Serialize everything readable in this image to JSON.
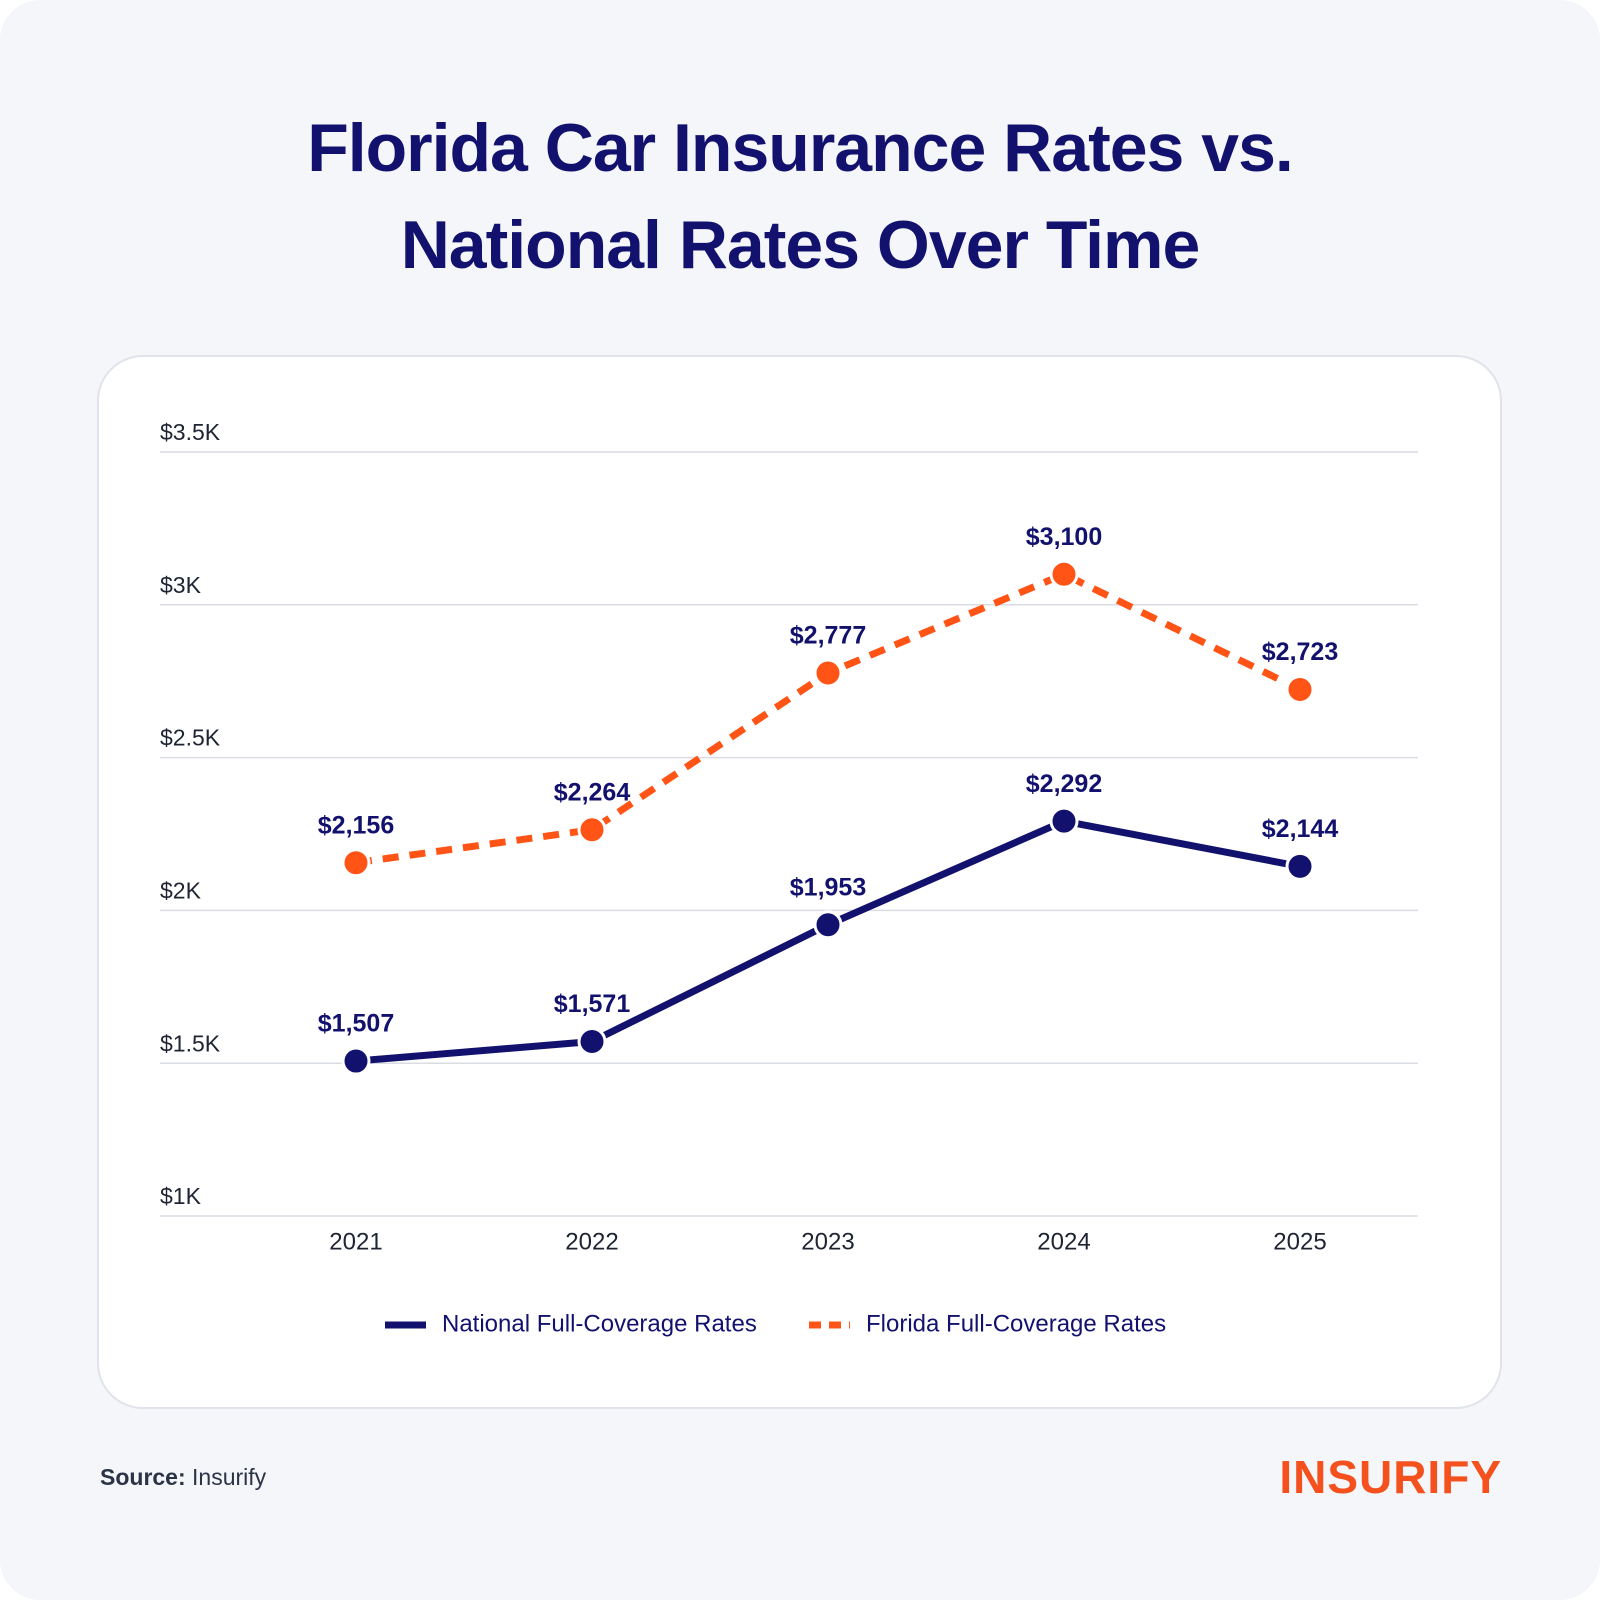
{
  "chart_data": {
    "type": "line",
    "title": "Florida Car Insurance Rates vs. National Rates Over Time",
    "categories": [
      "2021",
      "2022",
      "2023",
      "2024",
      "2025"
    ],
    "series": [
      {
        "name": "National Full-Coverage Rates",
        "color": "#12126e",
        "dashed": false,
        "values": [
          1507,
          1571,
          1953,
          2292,
          2144
        ],
        "value_labels": [
          "$1,507",
          "$1,571",
          "$1,953",
          "$2,292",
          "$2,144"
        ]
      },
      {
        "name": "Florida Full-Coverage Rates",
        "color": "#ff5416",
        "dashed": true,
        "values": [
          2156,
          2264,
          2777,
          3100,
          2723
        ],
        "value_labels": [
          "$2,156",
          "$2,264",
          "$2,777",
          "$3,100",
          "$2,723"
        ]
      }
    ],
    "ylim": [
      1000,
      3500
    ],
    "yticks": [
      {
        "value": 1000,
        "label": "$1K"
      },
      {
        "value": 1500,
        "label": "$1.5K"
      },
      {
        "value": 2000,
        "label": "$2K"
      },
      {
        "value": 2500,
        "label": "$2.5K"
      },
      {
        "value": 3000,
        "label": "$3K"
      },
      {
        "value": 3500,
        "label": "$3.5K"
      }
    ],
    "grid": true,
    "legend": "bottom"
  },
  "source": {
    "label": "Source:",
    "text": "Insurify"
  },
  "brand": "INSURIFY"
}
